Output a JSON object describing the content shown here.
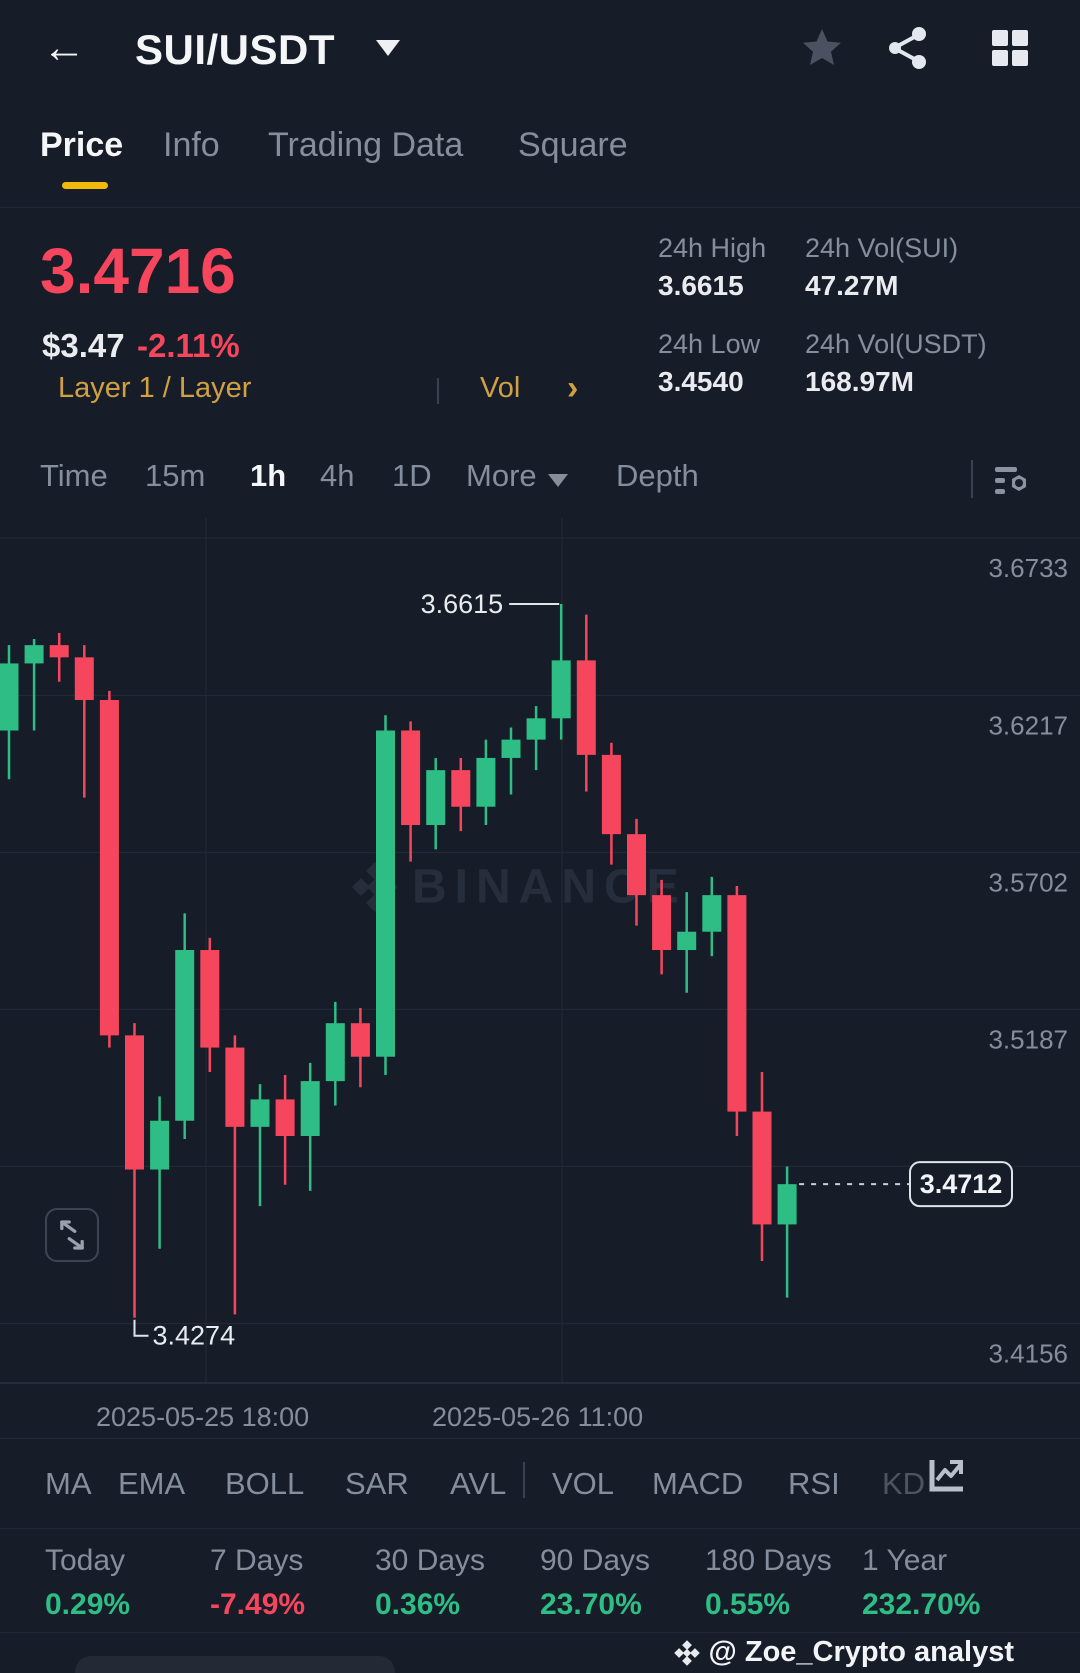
{
  "app": {
    "accent": "#f0b90b",
    "up_color": "#2ebd85",
    "down_color": "#f6465d",
    "bg": "#171d28"
  },
  "header": {
    "title": "SUI/USDT"
  },
  "tabs": [
    {
      "label": "Price",
      "active": true
    },
    {
      "label": "Info",
      "active": false
    },
    {
      "label": "Trading Data",
      "active": false
    },
    {
      "label": "Square",
      "active": false
    }
  ],
  "price_panel": {
    "last_price": "3.4716",
    "fiat_value": "$3.47",
    "change_pct": "-2.11%",
    "category": "Layer 1 / Layer",
    "vol_link": "Vol"
  },
  "stats": [
    {
      "label": "24h High",
      "value": "3.6615"
    },
    {
      "label": "24h Vol(SUI)",
      "value": "47.27M"
    },
    {
      "label": "24h Low",
      "value": "3.4540"
    },
    {
      "label": "24h Vol(USDT)",
      "value": "168.97M"
    }
  ],
  "toolbar": {
    "timeframes": [
      "Time",
      "15m",
      "1h",
      "4h",
      "1D"
    ],
    "active_timeframe": "1h",
    "more_label": "More",
    "depth_label": "Depth"
  },
  "chart_data": {
    "type": "candlestick",
    "pair": "SUI/USDT",
    "interval": "1h",
    "ylim": [
      3.407,
      3.69
    ],
    "y_axis_labels": [
      3.6733,
      3.6217,
      3.5702,
      3.5187,
      3.4156
    ],
    "hidden_gridline_value": 3.4672,
    "x_axis_labels": [
      "2025-05-25 18:00",
      "2025-05-26 11:00"
    ],
    "annotations": {
      "high": "3.6615",
      "low": "3.4274",
      "last_price": "3.4712"
    },
    "watermark": "BINANCE",
    "colors": {
      "up": "#2ebd85",
      "down": "#f6465d"
    },
    "ohlc": [
      [
        3.62,
        3.648,
        3.604,
        3.642
      ],
      [
        3.642,
        3.65,
        3.62,
        3.648
      ],
      [
        3.648,
        3.652,
        3.636,
        3.644
      ],
      [
        3.644,
        3.648,
        3.598,
        3.63
      ],
      [
        3.63,
        3.633,
        3.516,
        3.52
      ],
      [
        3.52,
        3.524,
        3.4274,
        3.476
      ],
      [
        3.476,
        3.5,
        3.45,
        3.492
      ],
      [
        3.492,
        3.56,
        3.486,
        3.548
      ],
      [
        3.548,
        3.552,
        3.508,
        3.516
      ],
      [
        3.516,
        3.52,
        3.4285,
        3.49
      ],
      [
        3.49,
        3.504,
        3.464,
        3.499
      ],
      [
        3.499,
        3.507,
        3.471,
        3.487
      ],
      [
        3.487,
        3.511,
        3.469,
        3.505
      ],
      [
        3.505,
        3.531,
        3.497,
        3.524
      ],
      [
        3.524,
        3.529,
        3.503,
        3.513
      ],
      [
        3.513,
        3.625,
        3.507,
        3.62
      ],
      [
        3.62,
        3.623,
        3.577,
        3.589
      ],
      [
        3.589,
        3.611,
        3.581,
        3.607
      ],
      [
        3.607,
        3.611,
        3.587,
        3.595
      ],
      [
        3.595,
        3.617,
        3.589,
        3.611
      ],
      [
        3.611,
        3.621,
        3.599,
        3.617
      ],
      [
        3.617,
        3.628,
        3.607,
        3.624
      ],
      [
        3.624,
        3.6615,
        3.617,
        3.643
      ],
      [
        3.643,
        3.658,
        3.6,
        3.612
      ],
      [
        3.612,
        3.616,
        3.576,
        3.586
      ],
      [
        3.586,
        3.591,
        3.556,
        3.566
      ],
      [
        3.566,
        3.571,
        3.54,
        3.548
      ],
      [
        3.548,
        3.567,
        3.534,
        3.554
      ],
      [
        3.554,
        3.572,
        3.546,
        3.566
      ],
      [
        3.566,
        3.569,
        3.487,
        3.495
      ],
      [
        3.495,
        3.508,
        3.446,
        3.458
      ],
      [
        3.458,
        3.477,
        3.434,
        3.4712
      ]
    ]
  },
  "indicators": [
    "MA",
    "EMA",
    "BOLL",
    "SAR",
    "AVL",
    "VOL",
    "MACD",
    "RSI",
    "KD"
  ],
  "performance": [
    {
      "label": "Today",
      "value": "0.29%",
      "direction": "up"
    },
    {
      "label": "7 Days",
      "value": "-7.49%",
      "direction": "down"
    },
    {
      "label": "30 Days",
      "value": "0.36%",
      "direction": "up"
    },
    {
      "label": "90 Days",
      "value": "23.70%",
      "direction": "up"
    },
    {
      "label": "180 Days",
      "value": "0.55%",
      "direction": "up"
    },
    {
      "label": "1 Year",
      "value": "232.70%",
      "direction": "up"
    }
  ],
  "credit": "@ Zoe_Crypto analyst"
}
